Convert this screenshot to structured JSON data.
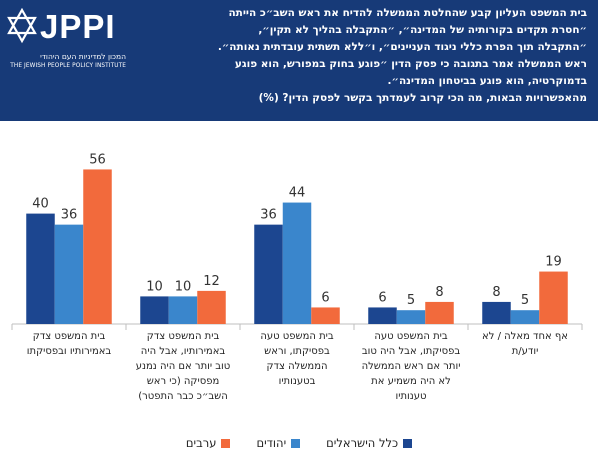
{
  "header": {
    "logo_text": "JPPI",
    "logo_subtitle_he": "המכון למדיניות העם היהודי",
    "logo_subtitle_en": "THE JEWISH PEOPLE POLICY INSTITUTE",
    "question_lines": [
      "בית המשפט העליון קבע שהחלטת הממשלה להדיח את ראש השב״כ הייתה",
      "״חסרת תקדים בקורותיה של המדינה״, ״התקבלה בהליך לא תקין״,",
      "״התקבלה תוך הפרת כללי ניגוד העניינים״, ו״ללא תשתית עובדתית נאותה״.",
      "ראש הממשלה אמר בתגובה כי פסק הדין ״פוגע בחוק במפורש, הוא פוגע",
      "בדמוקרטיה, הוא פוגע בביטחון המדינה״.",
      "מהאפשרויות הבאות, מה הכי קרוב לעמדתך בקשר לפסק הדין? (%)"
    ]
  },
  "colors": {
    "header_bg": "#173a78",
    "all_israelis": "#1c4690",
    "jews": "#3a86cc",
    "arabs": "#f26a3c"
  },
  "chart_data": {
    "type": "bar",
    "categories": [
      "בית המשפט צדק באמירותיו ובפסיקתו",
      "בית המשפט צדק באמירותיו, אבל היה טוב יותר אם היה נמנע מפסיקה (כי ראש השב״כ כבר התפטר)",
      "בית המשפט טעה בפסיקתו, וראש הממשלה צדק בטענותיו",
      "בית המשפט טעה בפסיקתו, אבל היה טוב יותר אם ראש הממשלה לא היה משמיע את טענותיו",
      "אף אחד מאלה / לא יודע/ת"
    ],
    "category_lines": [
      [
        "בית המשפט צדק",
        "באמירותיו ובפסיקתו"
      ],
      [
        "בית המשפט צדק",
        "באמירותיו, אבל היה",
        "טוב יותר אם היה נמנע",
        "מפסיקה (כי ראש",
        "השב״כ כבר התפטר)"
      ],
      [
        "בית המשפט טעה",
        "בפסיקתו, וראש",
        "הממשלה צדק",
        "בטענותיו"
      ],
      [
        "בית המשפט טעה",
        "בפסיקתו, אבל היה טוב",
        "יותר אם ראש הממשלה",
        "לא היה משמיע את",
        "טענותיו"
      ],
      [
        "אף אחד מאלה / לא",
        "יודע/ת"
      ]
    ],
    "series": [
      {
        "name": "כלל הישראלים",
        "values": [
          40,
          10,
          36,
          6,
          8
        ]
      },
      {
        "name": "יהודים",
        "values": [
          36,
          10,
          44,
          5,
          5
        ]
      },
      {
        "name": "ערבים",
        "values": [
          56,
          12,
          6,
          8,
          19
        ]
      }
    ],
    "ylim": [
      0,
      60
    ],
    "grid": false,
    "legend_position": "bottom",
    "value_labels": true
  }
}
